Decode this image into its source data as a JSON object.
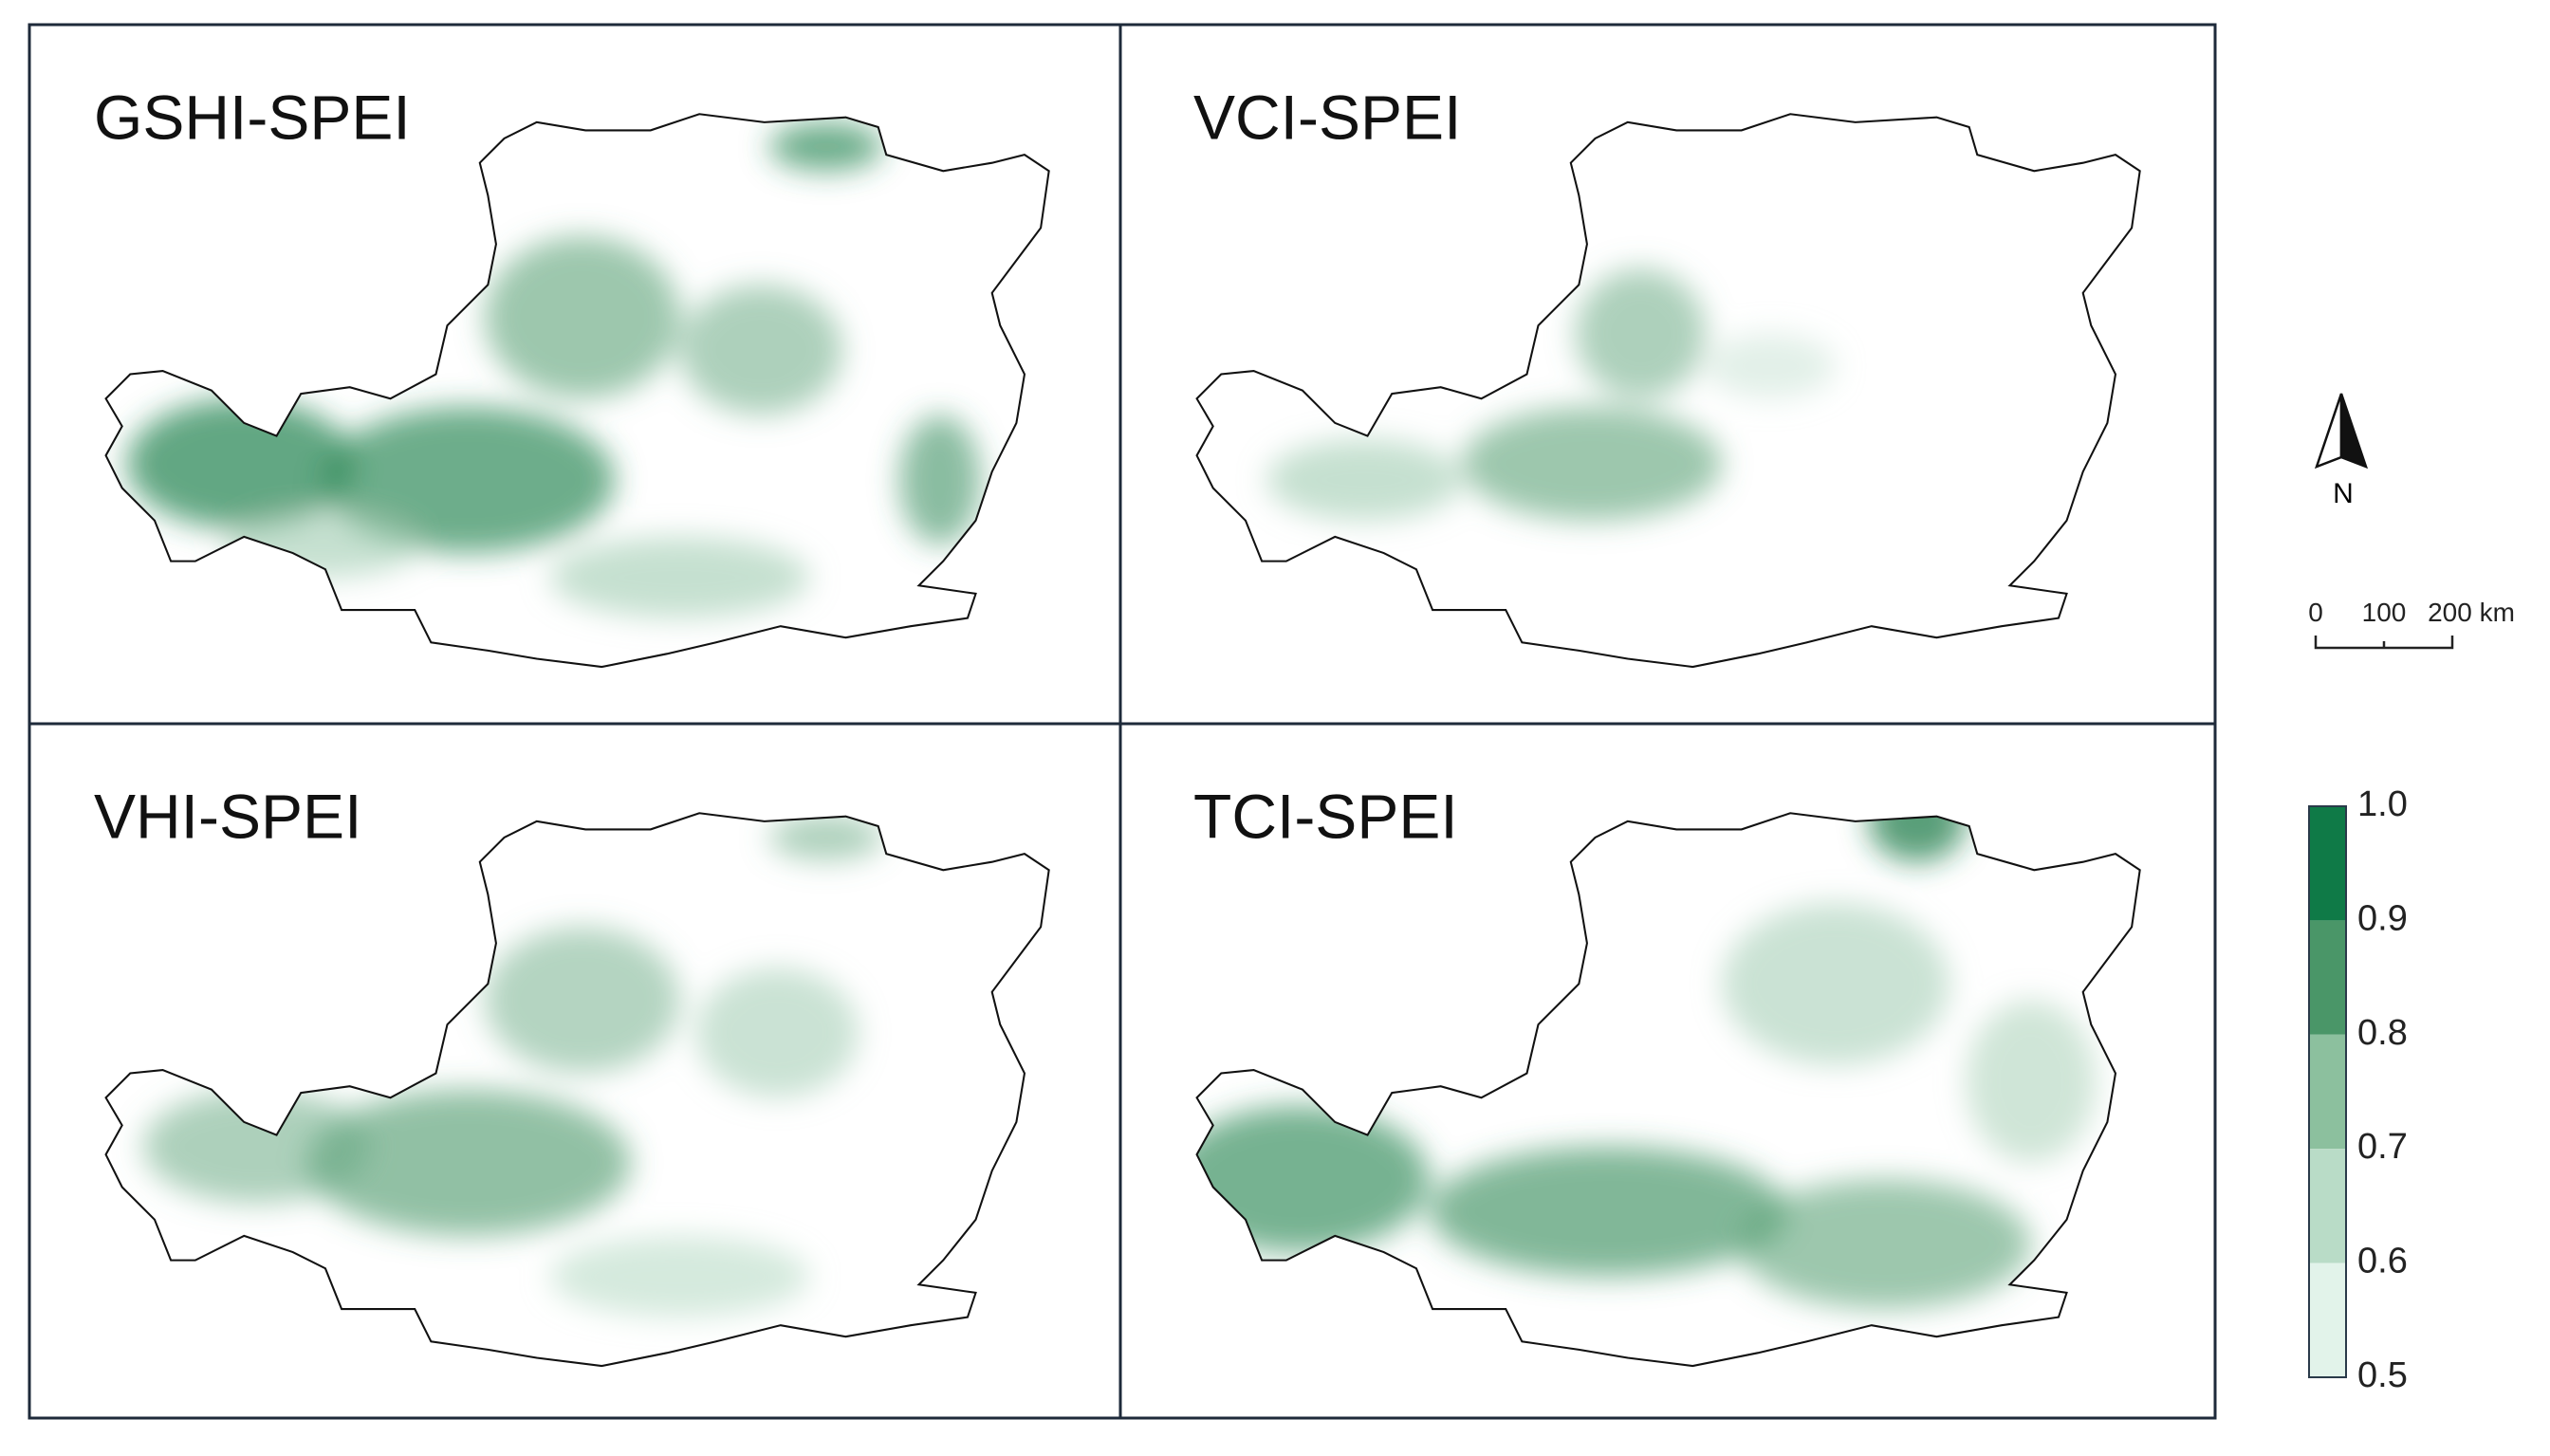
{
  "panels": [
    {
      "title": "GSHI-SPEI"
    },
    {
      "title": "VCI-SPEI"
    },
    {
      "title": "VHI-SPEI"
    },
    {
      "title": "TCI-SPEI"
    }
  ],
  "north_label": "N",
  "scale_bar": {
    "labels": [
      "0",
      "100",
      "200 km"
    ]
  },
  "legend": {
    "labels": [
      "1.0",
      "0.9",
      "0.8",
      "0.7",
      "0.6",
      "0.5"
    ],
    "colors": [
      "#0f7a47",
      "#4a9668",
      "#8cc09e",
      "#b9dcc7",
      "#e2f3ea"
    ]
  }
}
